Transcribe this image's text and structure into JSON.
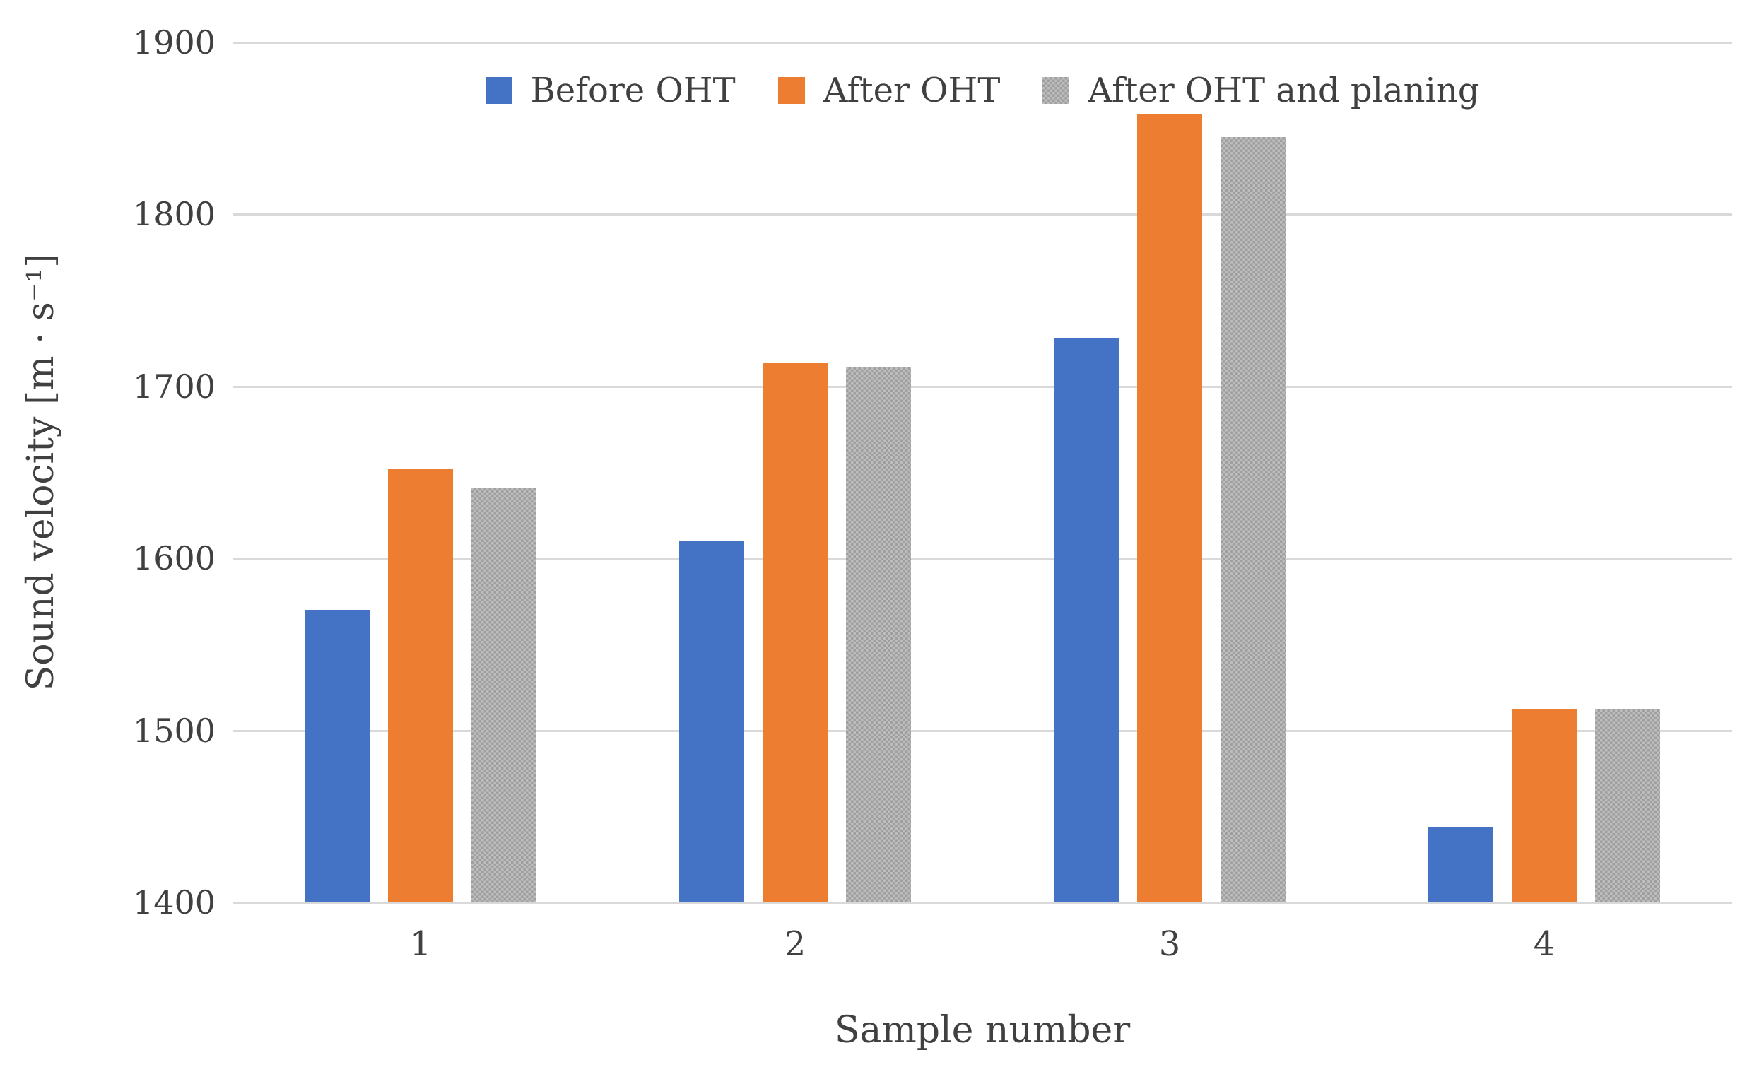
{
  "chart_data": {
    "type": "bar",
    "title": "",
    "xlabel": "Sample number",
    "ylabel": "Sound velocity [m · s⁻¹]",
    "categories": [
      "1",
      "2",
      "3",
      "4"
    ],
    "series": [
      {
        "name": "Before OHT",
        "color": "#4472C4",
        "pattern": false,
        "values": [
          1570,
          1610,
          1728,
          1444
        ]
      },
      {
        "name": "After OHT",
        "color": "#ED7D31",
        "pattern": false,
        "values": [
          1652,
          1714,
          1858,
          1512
        ]
      },
      {
        "name": "After OHT and planing",
        "color": "#ACACAC",
        "pattern": true,
        "values": [
          1641,
          1711,
          1845,
          1512
        ]
      }
    ],
    "ylim": [
      1400,
      1900
    ],
    "ytick_labels": [
      "1900",
      "1800",
      "1700",
      "1600",
      "1500",
      "1400"
    ],
    "grid": true,
    "grid_color": "#D9D9D9",
    "text_color": "#404040",
    "legend_position": "top"
  }
}
